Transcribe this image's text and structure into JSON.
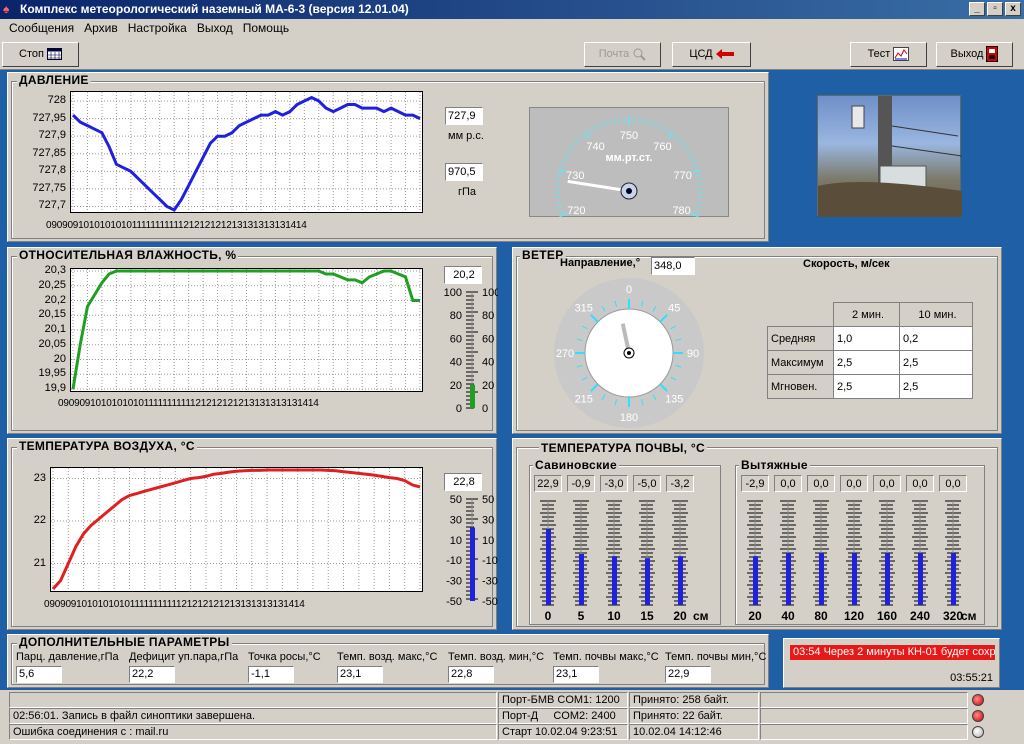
{
  "window": {
    "title": "Комплекс метеорологический наземный МА-6-3 (версия 12.01.04)",
    "min": "_",
    "max": "▫",
    "close": "x"
  },
  "menu": [
    "Сообщения",
    "Архив",
    "Настройка",
    "Выход",
    "Помощь"
  ],
  "toolbar": {
    "stop": "Стоп",
    "mail": "Почта",
    "csd": "ЦСД",
    "test": "Тест",
    "exit": "Выход"
  },
  "pressure": {
    "title": "ДАВЛЕНИЕ",
    "mmhg_value": "727,9",
    "mmhg_unit": "мм р.с.",
    "hpa_value": "970,5",
    "hpa_unit": "гПа",
    "gauge_unit": "мм.рт.ст.",
    "gauge_ticks": [
      "720",
      "730",
      "740",
      "750",
      "760",
      "770",
      "780"
    ],
    "gauge_value": 727.9
  },
  "humidity": {
    "title": "ОТНОСИТЕЛЬНАЯ ВЛАЖНОСТЬ, %",
    "value": "20,2",
    "scale": [
      "100",
      "80",
      "60",
      "40",
      "20",
      "0"
    ],
    "bar_fraction": 0.2
  },
  "wind": {
    "title": "ВЕТЕР",
    "dir_label": "Направление,°",
    "dir_value": "348,0",
    "speed_label": "Скорость, м/сек",
    "compass": [
      "0",
      "45",
      "90",
      "135",
      "180",
      "215",
      "270",
      "315"
    ],
    "direction_deg": 348,
    "table": {
      "headers": [
        "",
        "2 мин.",
        "10 мин."
      ],
      "rows": [
        [
          "Средняя",
          "1,0",
          "0,2"
        ],
        [
          "Максимум",
          "2,5",
          "2,5"
        ],
        [
          "Мгновен.",
          "2,5",
          "2,5"
        ]
      ]
    }
  },
  "air_temp": {
    "title": "ТЕМПЕРАТУРА ВОЗДУХА, °С",
    "value": "22,8",
    "scale": [
      "50",
      "30",
      "10",
      "-10",
      "-30",
      "-50"
    ],
    "bar_fraction": 0.72
  },
  "soil": {
    "title": "ТЕМПЕРАТУРА ПОЧВЫ, °С",
    "group1": {
      "name": "Савиновские",
      "values": [
        "22,9",
        "-0,9",
        "-3,0",
        "-5,0",
        "-3,2"
      ],
      "depths": [
        "0",
        "5",
        "10",
        "15",
        "20"
      ],
      "fractions": [
        0.73,
        0.49,
        0.47,
        0.45,
        0.47
      ]
    },
    "group2": {
      "name": "Вытяжные",
      "values": [
        "-2,9",
        "0,0",
        "0,0",
        "0,0",
        "0,0",
        "0,0",
        "0,0"
      ],
      "depths": [
        "20",
        "40",
        "80",
        "120",
        "160",
        "240",
        "320"
      ],
      "fractions": [
        0.47,
        0.5,
        0.5,
        0.5,
        0.5,
        0.5,
        0.5
      ]
    },
    "unit": "см"
  },
  "extra": {
    "title": "ДОПОЛНИТЕЛЬНЫЕ ПАРАМЕТРЫ",
    "items": [
      {
        "label": "Парц. давление,гПа",
        "value": "5,6"
      },
      {
        "label": "Дефицит уп.пара,гПа",
        "value": "22,2"
      },
      {
        "label": "Точка росы,°С",
        "value": "-1,1"
      },
      {
        "label": "Темп. возд. макс,°С",
        "value": "23,1"
      },
      {
        "label": "Темп. возд. мин,°С",
        "value": "22,8"
      },
      {
        "label": "Темп. почвы макс,°С",
        "value": "23,1"
      },
      {
        "label": "Темп. почвы мин,°С",
        "value": "22,9"
      }
    ]
  },
  "alert": {
    "message": "03:54 Через 2 минуты КН-01 будет сохр.",
    "time": "03:55:21"
  },
  "status": {
    "log1": "",
    "log2": "02:56:01. Запись в файл синоптики завершена.",
    "log3": "Ошибка соединения с : mail.ru",
    "port1": "Порт-БМВ COM1: 1200",
    "port2": "Порт-Д     COM2: 2400",
    "start": "Старт 10.02.04 9:23:51",
    "recv1": "Принято: 258 байт.",
    "recv2": "Принято: 22 байт.",
    "now": "10.02.04 14:12:46"
  },
  "chart_data": [
    {
      "type": "line",
      "title": "ДАВЛЕНИЕ",
      "categories": [
        "09",
        "09",
        "09",
        "10",
        "10",
        "10",
        "10",
        "10",
        "11",
        "11",
        "11",
        "11",
        "11",
        "12",
        "12",
        "12",
        "12",
        "12",
        "13",
        "13",
        "13",
        "13",
        "13",
        "14",
        "14"
      ],
      "yticks": [
        "728",
        "727,95",
        "727,9",
        "727,85",
        "727,8",
        "727,75",
        "727,7"
      ],
      "ylim": [
        727.69,
        728.02
      ],
      "x": [
        0,
        1,
        2,
        3,
        4,
        5,
        6,
        7,
        8,
        9,
        10,
        11,
        12,
        13,
        14,
        15,
        16,
        17,
        18,
        19,
        20,
        21,
        22,
        23,
        24,
        25,
        26,
        27,
        28,
        29,
        30,
        31,
        32,
        33,
        34,
        35,
        36,
        37,
        38,
        39,
        40,
        41,
        42,
        43,
        44,
        45,
        46,
        47,
        48
      ],
      "values": [
        727.96,
        727.94,
        727.93,
        727.92,
        727.91,
        727.87,
        727.82,
        727.81,
        727.8,
        727.78,
        727.76,
        727.74,
        727.72,
        727.7,
        727.69,
        727.72,
        727.76,
        727.8,
        727.84,
        727.88,
        727.9,
        727.9,
        727.91,
        727.93,
        727.94,
        727.95,
        727.96,
        727.96,
        727.97,
        727.96,
        727.97,
        727.99,
        728.0,
        728.01,
        728.0,
        727.98,
        727.97,
        727.98,
        727.99,
        727.99,
        727.98,
        727.98,
        727.98,
        727.97,
        727.98,
        727.97,
        727.96,
        727.96,
        727.95
      ],
      "color": "#2020e0"
    },
    {
      "type": "line",
      "title": "ОТНОСИТЕЛЬНАЯ ВЛАЖНОСТЬ, %",
      "categories": [
        "09",
        "09",
        "09",
        "10",
        "10",
        "10",
        "10",
        "10",
        "11",
        "11",
        "11",
        "11",
        "11",
        "12",
        "12",
        "12",
        "12",
        "12",
        "13",
        "13",
        "13",
        "13",
        "13",
        "14",
        "14"
      ],
      "yticks": [
        "20,3",
        "20,25",
        "20,2",
        "20,15",
        "20,1",
        "20,05",
        "20",
        "19,95",
        "19,9"
      ],
      "ylim": [
        19.9,
        20.3
      ],
      "x": [
        0,
        1,
        2,
        3,
        4,
        5,
        6,
        7,
        8,
        9,
        10,
        11,
        12,
        13,
        14,
        15,
        16,
        17,
        18,
        19,
        20,
        21,
        22,
        23,
        24,
        25,
        26,
        27,
        28,
        29,
        30,
        31,
        32,
        33,
        34,
        35,
        36,
        37,
        38,
        39,
        40,
        41,
        42,
        43,
        44,
        45,
        46,
        47,
        48
      ],
      "values": [
        19.9,
        20.05,
        20.18,
        20.22,
        20.26,
        20.29,
        20.3,
        20.3,
        20.3,
        20.3,
        20.3,
        20.3,
        20.3,
        20.3,
        20.3,
        20.3,
        20.3,
        20.3,
        20.3,
        20.3,
        20.3,
        20.3,
        20.3,
        20.3,
        20.3,
        20.3,
        20.3,
        20.3,
        20.3,
        20.3,
        20.3,
        20.3,
        20.3,
        20.3,
        20.3,
        20.29,
        20.29,
        20.28,
        20.27,
        20.27,
        20.26,
        20.28,
        20.29,
        20.3,
        20.3,
        20.29,
        20.28,
        20.2,
        20.2
      ],
      "color": "#20a020"
    },
    {
      "type": "line",
      "title": "ТЕМПЕРАТУРА ВОЗДУХА, °С",
      "categories": [
        "09",
        "09",
        "09",
        "10",
        "10",
        "10",
        "10",
        "10",
        "11",
        "11",
        "11",
        "11",
        "11",
        "12",
        "12",
        "12",
        "12",
        "12",
        "13",
        "13",
        "13",
        "13",
        "13",
        "14",
        "14"
      ],
      "yticks": [
        "23",
        "22",
        "21"
      ],
      "ylim": [
        20.4,
        23.2
      ],
      "x": [
        0,
        1,
        2,
        3,
        4,
        5,
        6,
        7,
        8,
        9,
        10,
        11,
        12,
        13,
        14,
        15,
        16,
        17,
        18,
        19,
        20,
        21,
        22,
        23,
        24,
        25,
        26,
        27,
        28,
        29,
        30,
        31,
        32,
        33,
        34,
        35,
        36,
        37,
        38,
        39,
        40,
        41,
        42,
        43,
        44,
        45,
        46,
        47,
        48
      ],
      "values": [
        20.4,
        20.6,
        21.0,
        21.4,
        21.7,
        21.9,
        22.05,
        22.2,
        22.35,
        22.5,
        22.6,
        22.65,
        22.7,
        22.75,
        22.8,
        22.85,
        22.9,
        22.95,
        23.0,
        23.02,
        23.05,
        23.1,
        23.12,
        23.15,
        23.17,
        23.18,
        23.19,
        23.19,
        23.2,
        23.2,
        23.2,
        23.2,
        23.2,
        23.2,
        23.2,
        23.2,
        23.19,
        23.18,
        23.16,
        23.14,
        23.12,
        23.1,
        23.08,
        23.05,
        23.02,
        23.0,
        22.95,
        22.85,
        22.8
      ],
      "color": "#e02020"
    }
  ]
}
